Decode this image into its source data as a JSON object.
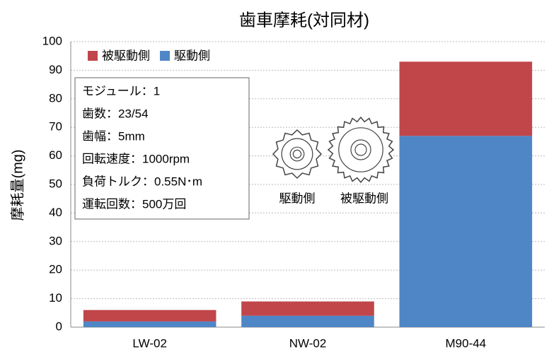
{
  "chart_data": {
    "type": "bar",
    "stacked": true,
    "title": "歯車摩耗(対同材)",
    "y_label": "摩耗量(mg)",
    "categories": [
      "LW-02",
      "NW-02",
      "M90-44"
    ],
    "series": [
      {
        "name": "被駆動側",
        "color": "#c0464a",
        "values": [
          4,
          5,
          26
        ]
      },
      {
        "name": "駆動側",
        "color": "#4f86c6",
        "values": [
          2,
          4,
          67
        ]
      }
    ],
    "ylim": [
      0,
      100
    ],
    "yticks": [
      0,
      10,
      20,
      30,
      40,
      50,
      60,
      70,
      80,
      90,
      100
    ],
    "grid": true,
    "legend": "top-left",
    "annotations": [
      "モジュール：1",
      "歯数：23/54",
      "歯幅：5mm",
      "回転速度：1000rpm",
      "負荷トルク：0.55N･m",
      "運転回数：500万回"
    ],
    "gear_labels": [
      "駆動側",
      "被駆動側"
    ]
  }
}
